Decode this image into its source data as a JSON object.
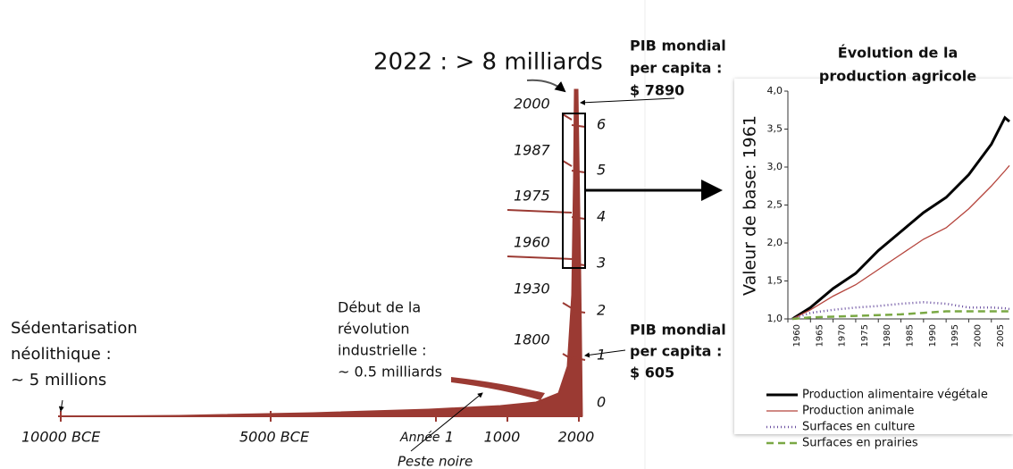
{
  "population": {
    "headline": "2022 : > 8 milliards",
    "neolithic": [
      "Sédentarisation",
      "néolithique :",
      "~ 5 millions"
    ],
    "industrial": [
      "Début de la",
      "révolution",
      "industrielle :",
      "~ 0.5 milliards"
    ],
    "gdp_top": [
      "PIB mondial",
      "per capita :",
      "$ 7890"
    ],
    "gdp_bottom": [
      "PIB mondial",
      "per capita :",
      "$ 605"
    ],
    "x_labels": [
      "10000 BCE",
      "5000 BCE",
      "Année",
      "1",
      "1000",
      "2000"
    ],
    "black_death": "Peste noire",
    "billions": [
      "0",
      "1",
      "2",
      "3",
      "4",
      "5",
      "6"
    ],
    "years": [
      "2000",
      "1987",
      "1975",
      "1960",
      "1930",
      "1800"
    ]
  },
  "chart_data": {
    "type": "line",
    "title": [
      "Évolution de la",
      "production agricole"
    ],
    "y_label": "Valeur de base: 1961",
    "x": [
      1961,
      1965,
      1970,
      1975,
      1980,
      1985,
      1990,
      1995,
      2000,
      2005,
      2008,
      2009
    ],
    "xlim": [
      1960,
      2009
    ],
    "xticks": [
      1960,
      1965,
      1970,
      1975,
      1980,
      1985,
      1990,
      1995,
      2000,
      2005
    ],
    "ylim": [
      1.0,
      4.0
    ],
    "yticks": [
      {
        "value": 1.0,
        "label": "1,0"
      },
      {
        "value": 1.5,
        "label": "1,5"
      },
      {
        "value": 2.0,
        "label": "2,0"
      },
      {
        "value": 2.5,
        "label": "2,5"
      },
      {
        "value": 3.0,
        "label": "3,0"
      },
      {
        "value": 3.5,
        "label": "3,5"
      },
      {
        "value": 4.0,
        "label": "4,0"
      }
    ],
    "series": [
      {
        "name": "Production alimentaire végétale",
        "color": "#000000",
        "style": "solid",
        "values": [
          1.0,
          1.15,
          1.4,
          1.6,
          1.9,
          2.15,
          2.4,
          2.6,
          2.9,
          3.3,
          3.65,
          3.6
        ]
      },
      {
        "name": "Production animale",
        "color": "#b5443c",
        "style": "thin",
        "values": [
          1.0,
          1.12,
          1.3,
          1.45,
          1.65,
          1.85,
          2.05,
          2.2,
          2.45,
          2.75,
          2.95,
          3.02
        ]
      },
      {
        "name": "Surfaces en culture",
        "color": "#6a4fa0",
        "style": "dotted",
        "values": [
          1.0,
          1.08,
          1.12,
          1.15,
          1.17,
          1.2,
          1.22,
          1.2,
          1.15,
          1.15,
          1.14,
          1.13
        ]
      },
      {
        "name": "Surfaces en prairies",
        "color": "#7aa844",
        "style": "dashed",
        "values": [
          1.0,
          1.02,
          1.03,
          1.04,
          1.05,
          1.06,
          1.08,
          1.1,
          1.1,
          1.1,
          1.1,
          1.1
        ]
      }
    ]
  }
}
